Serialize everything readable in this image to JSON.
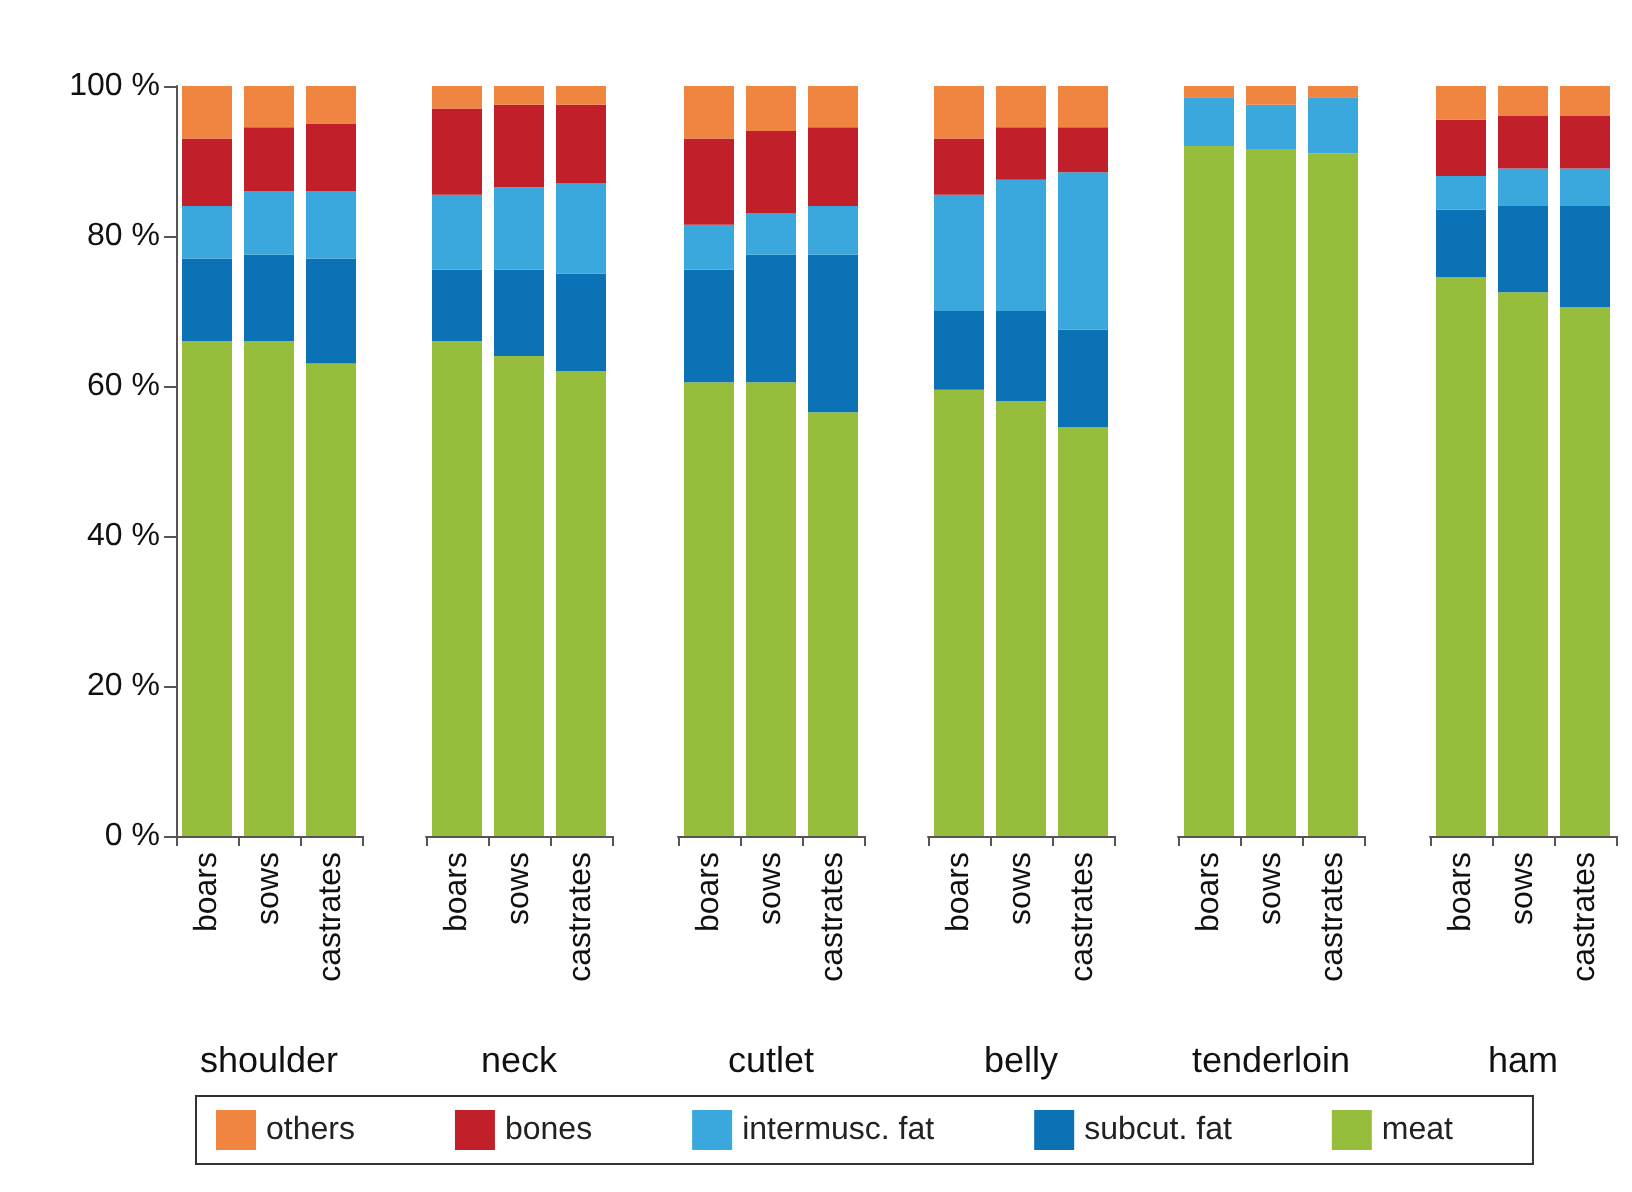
{
  "chart_data": [
    {
      "type": "bar",
      "stacked": true,
      "xlabel": "shoulder",
      "categories": [
        "boars",
        "sows",
        "castrates"
      ],
      "ylim": [
        0,
        100
      ],
      "yticks": [
        {
          "value": 0,
          "label": "0 %"
        },
        {
          "value": 20,
          "label": "20 %"
        },
        {
          "value": 40,
          "label": "40 %"
        },
        {
          "value": 60,
          "label": "60 %"
        },
        {
          "value": 80,
          "label": "80 %"
        },
        {
          "value": 100,
          "label": "100 %"
        }
      ],
      "grid": false,
      "legend": "bottom",
      "series": [
        {
          "name": "meat",
          "color": "#97bd3d",
          "values": [
            66,
            66,
            63
          ]
        },
        {
          "name": "subcut. fat",
          "color": "#0b72b5",
          "values": [
            11,
            11.5,
            14
          ]
        },
        {
          "name": "intermusc. fat",
          "color": "#3aa8dc",
          "values": [
            7,
            8.5,
            9
          ]
        },
        {
          "name": "bones",
          "color": "#c1202a",
          "values": [
            9,
            8.5,
            9
          ]
        },
        {
          "name": "others",
          "color": "#ef8540",
          "values": [
            7,
            5.5,
            5
          ]
        }
      ]
    },
    {
      "type": "bar",
      "stacked": true,
      "xlabel": "neck",
      "categories": [
        "boars",
        "sows",
        "castrates"
      ],
      "ylim": [
        0,
        100
      ],
      "tick_labels": "x",
      "grid": false,
      "series": [
        {
          "color": "#97bd3d",
          "values": [
            66,
            64,
            62
          ]
        },
        {
          "color": "#0b72b5",
          "values": [
            9.5,
            11.5,
            13
          ]
        },
        {
          "color": "#3aa8dc",
          "values": [
            10,
            11,
            12
          ]
        },
        {
          "color": "#c1202a",
          "values": [
            11.5,
            11,
            10.5
          ]
        },
        {
          "color": "#ef8540",
          "values": [
            3,
            2.5,
            2.5
          ]
        }
      ]
    },
    {
      "type": "bar",
      "stacked": true,
      "xlabel": "cutlet",
      "categories": [
        "boars",
        "sows",
        "castrates"
      ],
      "ylim": [
        0,
        100
      ],
      "tick_labels": "x",
      "grid": false,
      "series": [
        {
          "color": "#97bd3d",
          "values": [
            60.5,
            60.5,
            56.5
          ]
        },
        {
          "color": "#0b72b5",
          "values": [
            15,
            17,
            21
          ]
        },
        {
          "color": "#3aa8dc",
          "values": [
            6,
            5.5,
            6.5
          ]
        },
        {
          "color": "#c1202a",
          "values": [
            11.5,
            11,
            10.5
          ]
        },
        {
          "color": "#ef8540",
          "values": [
            7,
            6,
            5.5
          ]
        }
      ]
    },
    {
      "type": "bar",
      "stacked": true,
      "xlabel": "belly",
      "categories": [
        "boars",
        "sows",
        "castrates"
      ],
      "ylim": [
        0,
        100
      ],
      "tick_labels": "x",
      "grid": false,
      "series": [
        {
          "color": "#97bd3d",
          "values": [
            59.5,
            58,
            54.5
          ]
        },
        {
          "color": "#0b72b5",
          "values": [
            10.5,
            12,
            13
          ]
        },
        {
          "color": "#3aa8dc",
          "values": [
            15.5,
            17.5,
            21
          ]
        },
        {
          "color": "#c1202a",
          "values": [
            7.5,
            7,
            6
          ]
        },
        {
          "color": "#ef8540",
          "values": [
            7,
            5.5,
            5.5
          ]
        }
      ]
    },
    {
      "type": "bar",
      "stacked": true,
      "xlabel": "tenderloin",
      "categories": [
        "boars",
        "sows",
        "castrates"
      ],
      "ylim": [
        0,
        100
      ],
      "tick_labels": "x",
      "grid": false,
      "series": [
        {
          "color": "#97bd3d",
          "values": [
            92,
            91.5,
            91
          ]
        },
        {
          "color": "#0b72b5",
          "values": [
            0,
            0,
            0
          ]
        },
        {
          "color": "#3aa8dc",
          "values": [
            6.5,
            6,
            7.5
          ]
        },
        {
          "color": "#c1202a",
          "values": [
            0,
            0,
            0
          ]
        },
        {
          "color": "#ef8540",
          "values": [
            1.5,
            2.5,
            1.5
          ]
        }
      ]
    },
    {
      "type": "bar",
      "stacked": true,
      "xlabel": "ham",
      "categories": [
        "boars",
        "sows",
        "castrates"
      ],
      "ylim": [
        0,
        100
      ],
      "tick_labels": "x",
      "grid": false,
      "series": [
        {
          "color": "#97bd3d",
          "values": [
            74.5,
            72.5,
            70.5
          ]
        },
        {
          "color": "#0b72b5",
          "values": [
            9,
            11.5,
            13.5
          ]
        },
        {
          "color": "#3aa8dc",
          "values": [
            4.5,
            5,
            5
          ]
        },
        {
          "color": "#c1202a",
          "values": [
            7.5,
            7,
            7
          ]
        },
        {
          "color": "#ef8540",
          "values": [
            4.5,
            4,
            4
          ]
        }
      ]
    }
  ]
}
